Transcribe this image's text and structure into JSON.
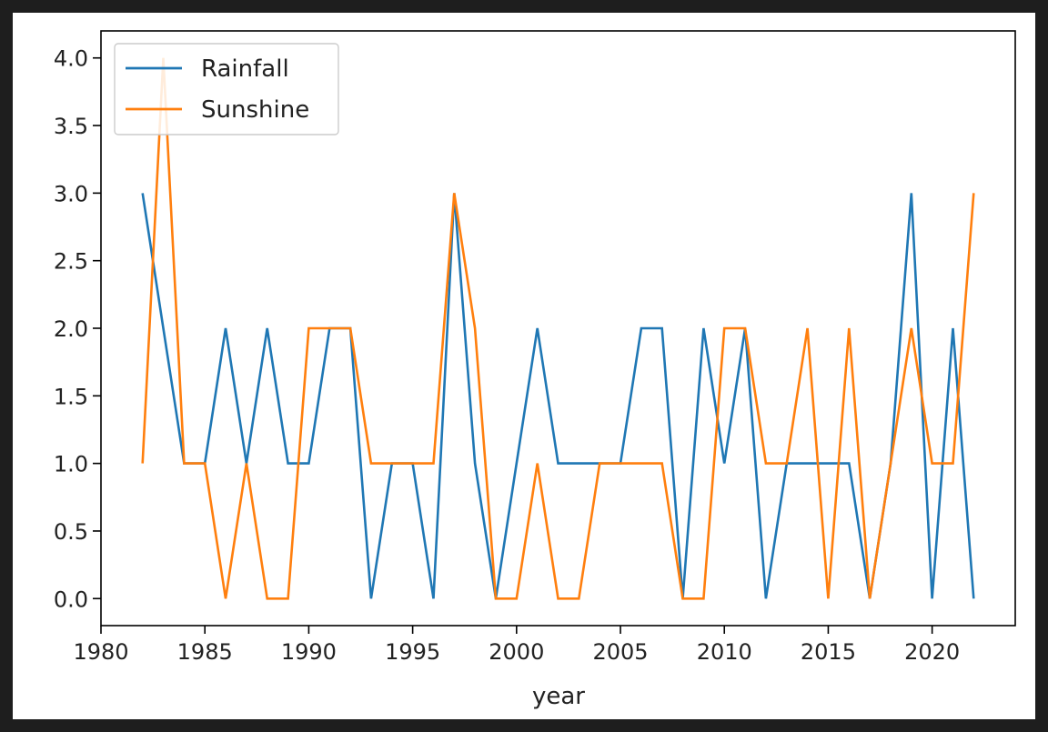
{
  "chart_data": {
    "type": "line",
    "title": "",
    "xlabel": "year",
    "ylabel": "",
    "xlim": [
      1980,
      2024
    ],
    "ylim": [
      -0.2,
      4.2
    ],
    "xticks": [
      1980,
      1985,
      1990,
      1995,
      2000,
      2005,
      2010,
      2015,
      2020
    ],
    "yticks": [
      0.0,
      0.5,
      1.0,
      1.5,
      2.0,
      2.5,
      3.0,
      3.5,
      4.0
    ],
    "ytick_labels": [
      "0.0",
      "0.5",
      "1.0",
      "1.5",
      "2.0",
      "2.5",
      "3.0",
      "3.5",
      "4.0"
    ],
    "grid": false,
    "legend_position": "upper-left",
    "x": [
      1982,
      1983,
      1984,
      1985,
      1986,
      1987,
      1988,
      1989,
      1990,
      1991,
      1992,
      1993,
      1994,
      1995,
      1996,
      1997,
      1998,
      1999,
      2000,
      2001,
      2002,
      2003,
      2004,
      2005,
      2006,
      2007,
      2008,
      2009,
      2010,
      2011,
      2012,
      2013,
      2014,
      2015,
      2016,
      2017,
      2018,
      2019,
      2020,
      2021,
      2022
    ],
    "series": [
      {
        "name": "Rainfall",
        "color": "#1f77b4",
        "values": [
          3,
          2,
          1,
          1,
          2,
          1,
          2,
          1,
          1,
          2,
          2,
          0,
          1,
          1,
          0,
          3,
          1,
          0,
          1,
          2,
          1,
          1,
          1,
          1,
          2,
          2,
          0,
          2,
          1,
          2,
          0,
          1,
          1,
          1,
          1,
          0,
          1,
          3,
          0,
          2,
          0
        ]
      },
      {
        "name": "Sunshine",
        "color": "#ff7f0e",
        "values": [
          1,
          4,
          1,
          1,
          0,
          1,
          0,
          0,
          2,
          2,
          2,
          1,
          1,
          1,
          1,
          3,
          2,
          0,
          0,
          1,
          0,
          0,
          1,
          1,
          1,
          1,
          0,
          0,
          2,
          2,
          1,
          1,
          2,
          0,
          2,
          0,
          1,
          2,
          1,
          1,
          3
        ]
      }
    ]
  }
}
